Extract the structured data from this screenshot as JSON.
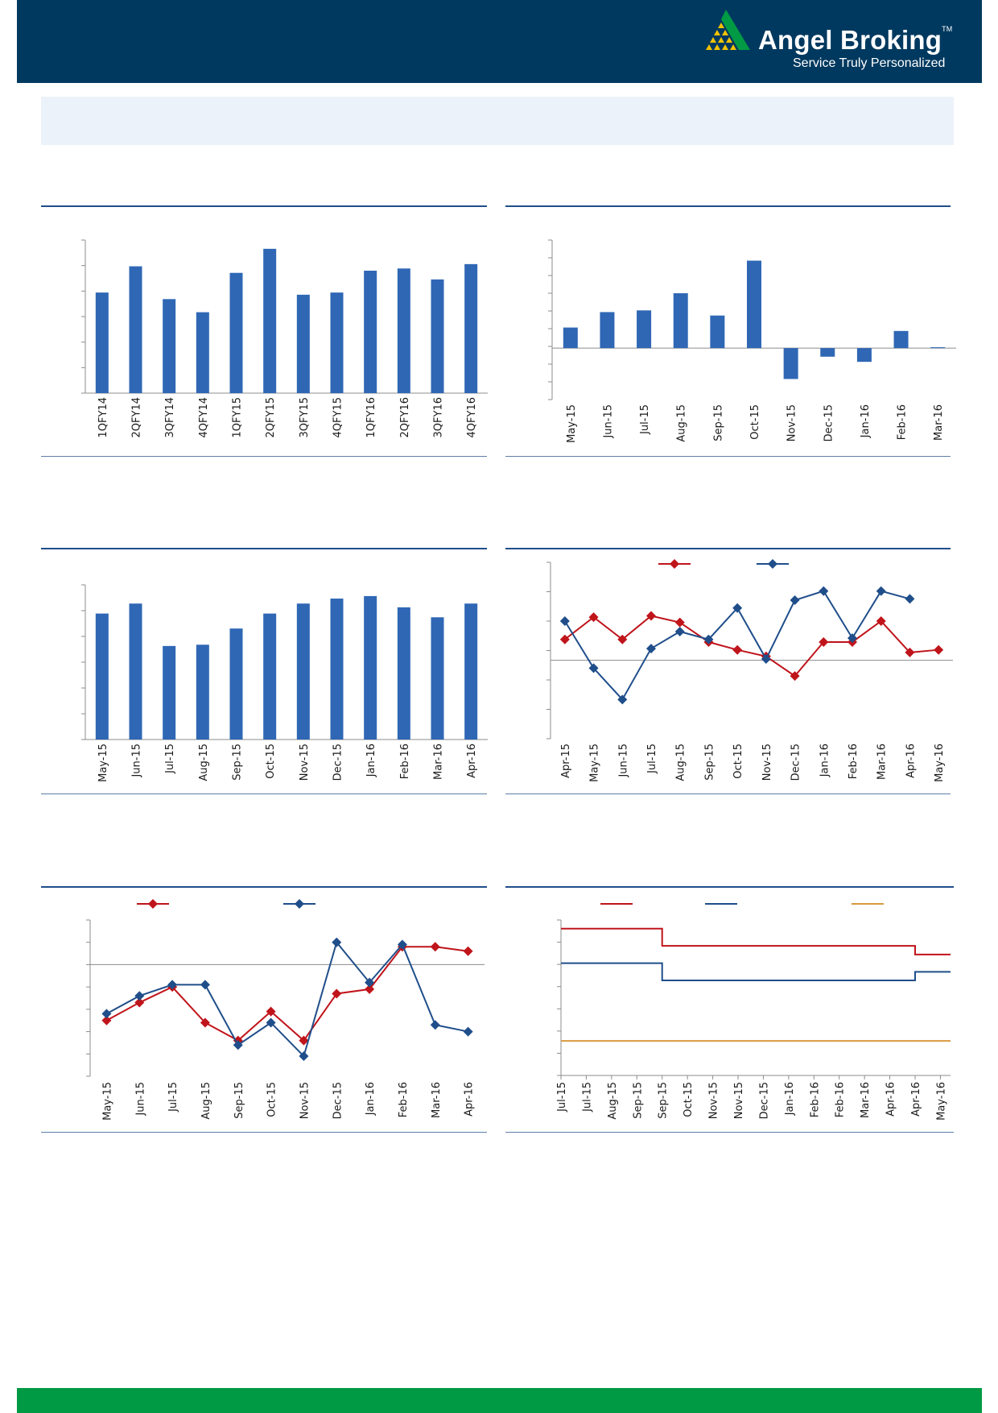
{
  "header": {
    "brand_name": "Angel Broking",
    "trademark": "TM",
    "tagline": "Service Truly Personalized",
    "logo_icon": "angel-broking-pyramid-logo",
    "colors": {
      "header_bg": "#00395f",
      "footer_bg": "#009a44",
      "bar": "#2f67b5",
      "red": "#c0141b",
      "blue": "#1f4e8a",
      "orange": "#d99a3f"
    }
  },
  "chart_data": [
    {
      "type": "bar",
      "categories": [
        "1QFY14",
        "2QFY14",
        "3QFY14",
        "4QFY14",
        "1QFY15",
        "2QFY15",
        "3QFY15",
        "4QFY15",
        "1QFY16",
        "2QFY16",
        "3QFY16",
        "4QFY16"
      ],
      "values": [
        4.6,
        5.8,
        4.3,
        3.7,
        5.5,
        6.6,
        4.5,
        4.6,
        5.6,
        5.7,
        5.2,
        5.9
      ],
      "ylim": [
        0,
        7
      ],
      "grid": false
    },
    {
      "type": "bar",
      "categories": [
        "May-15",
        "Jun-15",
        "Jul-15",
        "Aug-15",
        "Sep-15",
        "Oct-15",
        "Nov-15",
        "Dec-15",
        "Jan-16",
        "Feb-16",
        "Mar-16"
      ],
      "values": [
        1.2,
        2.1,
        2.2,
        3.2,
        1.9,
        5.1,
        -1.8,
        -0.5,
        -0.8,
        1.0,
        0.05
      ],
      "ylim": [
        -3,
        6.3
      ],
      "grid": false
    },
    {
      "type": "bar",
      "categories": [
        "May-15",
        "Jun-15",
        "Jul-15",
        "Aug-15",
        "Sep-15",
        "Oct-15",
        "Nov-15",
        "Dec-15",
        "Jan-16",
        "Feb-16",
        "Mar-16",
        "Apr-16"
      ],
      "values": [
        50.5,
        54.5,
        37.5,
        38,
        44.5,
        50.5,
        54.5,
        56.5,
        57.5,
        53,
        49,
        54.5
      ],
      "ylim": [
        0,
        62
      ],
      "grid": false
    },
    {
      "type": "line",
      "categories": [
        "Apr-15",
        "May-15",
        "Jun-15",
        "Jul-15",
        "Aug-15",
        "Sep-15",
        "Oct-15",
        "Nov-15",
        "Dec-15",
        "Jan-16",
        "Feb-16",
        "Mar-16",
        "Apr-16",
        "May-16"
      ],
      "series": [
        {
          "name": "",
          "color": "#c0141b",
          "values": [
            1.6,
            3.3,
            1.6,
            3.4,
            2.9,
            1.4,
            0.8,
            0.3,
            -1.2,
            1.4,
            1.4,
            3.0,
            0.6,
            0.8
          ]
        },
        {
          "name": "",
          "color": "#1f4e8a",
          "values": [
            3.0,
            -0.6,
            -3.0,
            0.9,
            2.2,
            1.6,
            4.0,
            0.1,
            4.6,
            5.3,
            1.7,
            5.3,
            4.7,
            null
          ]
        }
      ],
      "ylim": [
        -6,
        7.5
      ],
      "legend": "top",
      "grid": false
    },
    {
      "type": "line",
      "categories": [
        "May-15",
        "Jun-15",
        "Jul-15",
        "Aug-15",
        "Sep-15",
        "Oct-15",
        "Nov-15",
        "Dec-15",
        "Jan-16",
        "Feb-16",
        "Mar-16",
        "Apr-16"
      ],
      "series": [
        {
          "name": "",
          "color": "#c0141b",
          "values": [
            -2.5,
            -1.7,
            -1.0,
            -2.6,
            -3.4,
            -2.1,
            -3.4,
            -1.3,
            -1.1,
            0.8,
            0.8,
            0.6
          ]
        },
        {
          "name": "",
          "color": "#1f4e8a",
          "values": [
            -2.2,
            -1.4,
            -0.9,
            -0.9,
            -3.6,
            -2.6,
            -4.1,
            1.0,
            -0.8,
            0.9,
            -2.7,
            -3.0
          ]
        }
      ],
      "ylim": [
        -5,
        2
      ],
      "legend": "top",
      "grid": false
    },
    {
      "type": "line",
      "categories": [
        "Jul-15",
        "Jul-15",
        "Aug-15",
        "Sep-15",
        "Sep-15",
        "Oct-15",
        "Nov-15",
        "Nov-15",
        "Dec-15",
        "Jan-16",
        "Feb-16",
        "Feb-16",
        "Mar-16",
        "Apr-16",
        "Apr-16",
        "May-16"
      ],
      "series": [
        {
          "name": "",
          "color": "#c0141b",
          "values": [
            7.25,
            7.25,
            7.25,
            7.25,
            6.75,
            6.75,
            6.75,
            6.75,
            6.75,
            6.75,
            6.75,
            6.75,
            6.75,
            6.75,
            6.5,
            6.5
          ]
        },
        {
          "name": "",
          "color": "#1f4e8a",
          "values": [
            6.25,
            6.25,
            6.25,
            6.25,
            5.75,
            5.75,
            5.75,
            5.75,
            5.75,
            5.75,
            5.75,
            5.75,
            5.75,
            5.75,
            6.0,
            6.0
          ]
        },
        {
          "name": "",
          "color": "#d99a3f",
          "values": [
            4.0,
            4.0,
            4.0,
            4.0,
            4.0,
            4.0,
            4.0,
            4.0,
            4.0,
            4.0,
            4.0,
            4.0,
            4.0,
            4.0,
            4.0,
            4.0
          ]
        }
      ],
      "ylim": [
        3,
        7.5
      ],
      "step": true,
      "legend": "top",
      "grid": false
    }
  ]
}
